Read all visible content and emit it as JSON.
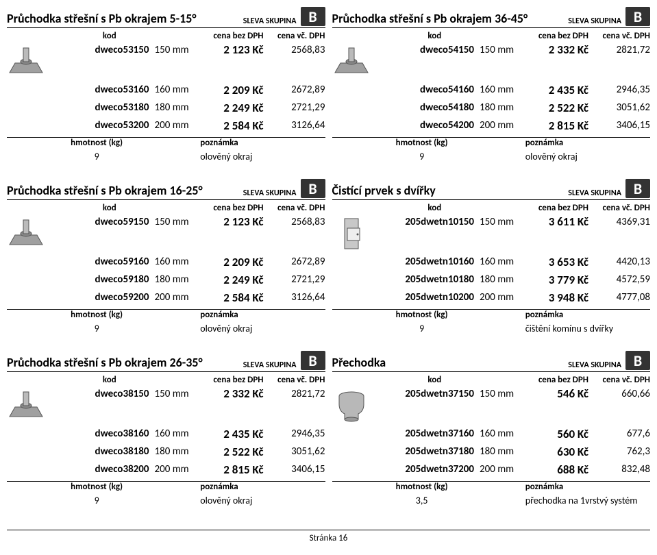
{
  "labels": {
    "sleva": "SLEVA SKUPINA",
    "kod": "kod",
    "bezDPH": "cena bez DPH",
    "vcDPH": "cena vč. DPH",
    "hmotnost": "hmotnost (kg)",
    "poznamka": "poznámka"
  },
  "pageFooter": "Stránka 16",
  "cards": [
    {
      "title": "Průchodka střešní s Pb okrajem 5-15°",
      "badge": "B",
      "thumb": "roof",
      "rows": [
        {
          "code": "dweco53150",
          "dim": "150 mm",
          "price": "2 123 Kč",
          "vat": "2568,83"
        },
        {
          "code": "dweco53160",
          "dim": "160 mm",
          "price": "2 209 Kč",
          "vat": "2672,89"
        },
        {
          "code": "dweco53180",
          "dim": "180 mm",
          "price": "2 249 Kč",
          "vat": "2721,29"
        },
        {
          "code": "dweco53200",
          "dim": "200 mm",
          "price": "2 584 Kč",
          "vat": "3126,64"
        }
      ],
      "weight": "9",
      "note": "olověný okraj"
    },
    {
      "title": "Průchodka střešní s Pb okrajem 36-45°",
      "badge": "B",
      "thumb": "roof",
      "rows": [
        {
          "code": "dweco54150",
          "dim": "150 mm",
          "price": "2 332 Kč",
          "vat": "2821,72"
        },
        {
          "code": "dweco54160",
          "dim": "160 mm",
          "price": "2 435 Kč",
          "vat": "2946,35"
        },
        {
          "code": "dweco54180",
          "dim": "180 mm",
          "price": "2 522 Kč",
          "vat": "3051,62"
        },
        {
          "code": "dweco54200",
          "dim": "200 mm",
          "price": "2 815 Kč",
          "vat": "3406,15"
        }
      ],
      "weight": "9",
      "note": "olověný okraj"
    },
    {
      "title": "Průchodka střešní s Pb okrajem 16-25°",
      "badge": "B",
      "thumb": "roof",
      "rows": [
        {
          "code": "dweco59150",
          "dim": "150 mm",
          "price": "2 123 Kč",
          "vat": "2568,83"
        },
        {
          "code": "dweco59160",
          "dim": "160 mm",
          "price": "2 209 Kč",
          "vat": "2672,89"
        },
        {
          "code": "dweco59180",
          "dim": "180 mm",
          "price": "2 249 Kč",
          "vat": "2721,29"
        },
        {
          "code": "dweco59200",
          "dim": "200 mm",
          "price": "2 584 Kč",
          "vat": "3126,64"
        }
      ],
      "weight": "9",
      "note": "olověný okraj"
    },
    {
      "title": "Čistící prvek s dvířky",
      "badge": "B",
      "thumb": "cleanout",
      "rows": [
        {
          "code": "205dwetn10150",
          "dim": "150 mm",
          "price": "3 611 Kč",
          "vat": "4369,31"
        },
        {
          "code": "205dwetn10160",
          "dim": "160 mm",
          "price": "3 653 Kč",
          "vat": "4420,13"
        },
        {
          "code": "205dwetn10180",
          "dim": "180 mm",
          "price": "3 779 Kč",
          "vat": "4572,59"
        },
        {
          "code": "205dwetn10200",
          "dim": "200 mm",
          "price": "3 948 Kč",
          "vat": "4777,08"
        }
      ],
      "weight": "9",
      "note": "čištění komínu s dvířky"
    },
    {
      "title": "Průchodka střešní s Pb okrajem 26-35°",
      "badge": "B",
      "thumb": "roof",
      "rows": [
        {
          "code": "dweco38150",
          "dim": "150 mm",
          "price": "2 332 Kč",
          "vat": "2821,72"
        },
        {
          "code": "dweco38160",
          "dim": "160 mm",
          "price": "2 435 Kč",
          "vat": "2946,35"
        },
        {
          "code": "dweco38180",
          "dim": "180 mm",
          "price": "2 522 Kč",
          "vat": "3051,62"
        },
        {
          "code": "dweco38200",
          "dim": "200 mm",
          "price": "2 815 Kč",
          "vat": "3406,15"
        }
      ],
      "weight": "9",
      "note": "olověný okraj"
    },
    {
      "title": "Přechodka",
      "badge": "B",
      "thumb": "reducer",
      "rows": [
        {
          "code": "205dwetn37150",
          "dim": "150 mm",
          "price": "546 Kč",
          "vat": "660,66"
        },
        {
          "code": "205dwetn37160",
          "dim": "160 mm",
          "price": "560 Kč",
          "vat": "677,6"
        },
        {
          "code": "205dwetn37180",
          "dim": "180 mm",
          "price": "630 Kč",
          "vat": "762,3"
        },
        {
          "code": "205dwetn37200",
          "dim": "200 mm",
          "price": "688 Kč",
          "vat": "832,48"
        }
      ],
      "weight": "3,5",
      "note": "přechodka na 1vrstvý systém"
    }
  ],
  "thumbs": {
    "roof_fill": "#a0a0a0",
    "roof_stroke": "#555555",
    "cleanout_fill": "#c8c8c8",
    "cleanout_stroke": "#555555",
    "reducer_fill": "#b8b8b8",
    "reducer_stroke": "#555555"
  }
}
